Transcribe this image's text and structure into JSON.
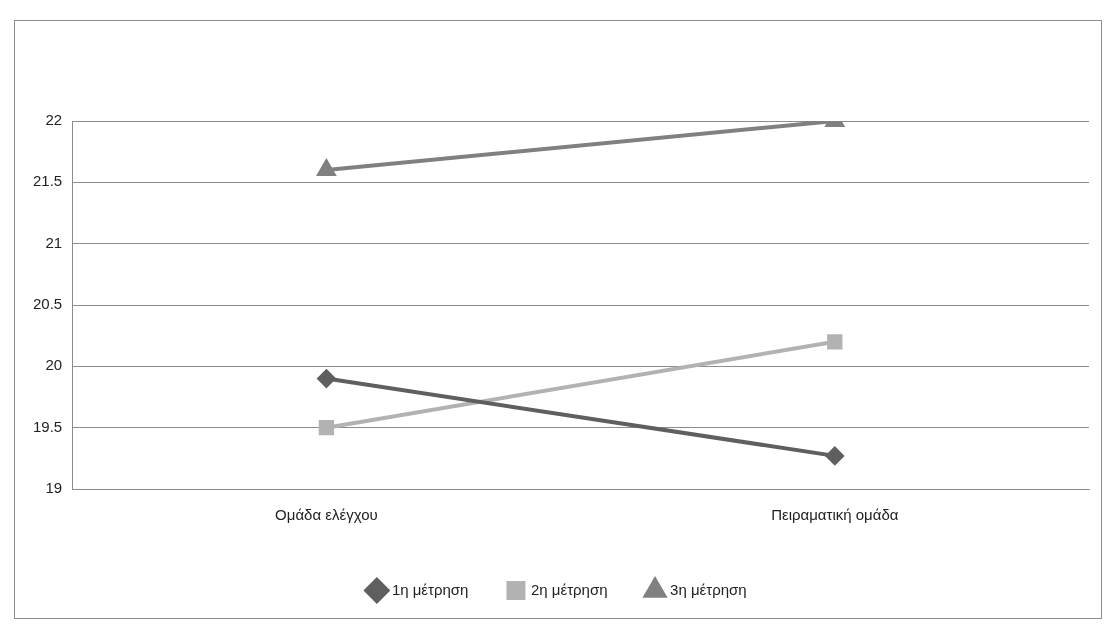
{
  "chart_data": {
    "type": "line",
    "categories": [
      "Ομάδα ελέγχου",
      "Πειραματική ομάδα"
    ],
    "series": [
      {
        "name": "1η μέτρηση",
        "color": "#5f5f5f",
        "values": [
          19.9,
          19.27
        ],
        "marker": "diamond"
      },
      {
        "name": "2η μέτρηση",
        "color": "#b2b2b2",
        "values": [
          19.5,
          20.2
        ],
        "marker": "square"
      },
      {
        "name": "3η μέτρηση",
        "color": "#808080",
        "values": [
          21.6,
          22.0
        ],
        "marker": "triangle"
      }
    ],
    "ylim": [
      19,
      22
    ],
    "yticks": [
      19,
      19.5,
      20,
      20.5,
      21,
      21.5,
      22
    ],
    "grid": "y",
    "legend": "bottom",
    "line_style": "solid"
  }
}
